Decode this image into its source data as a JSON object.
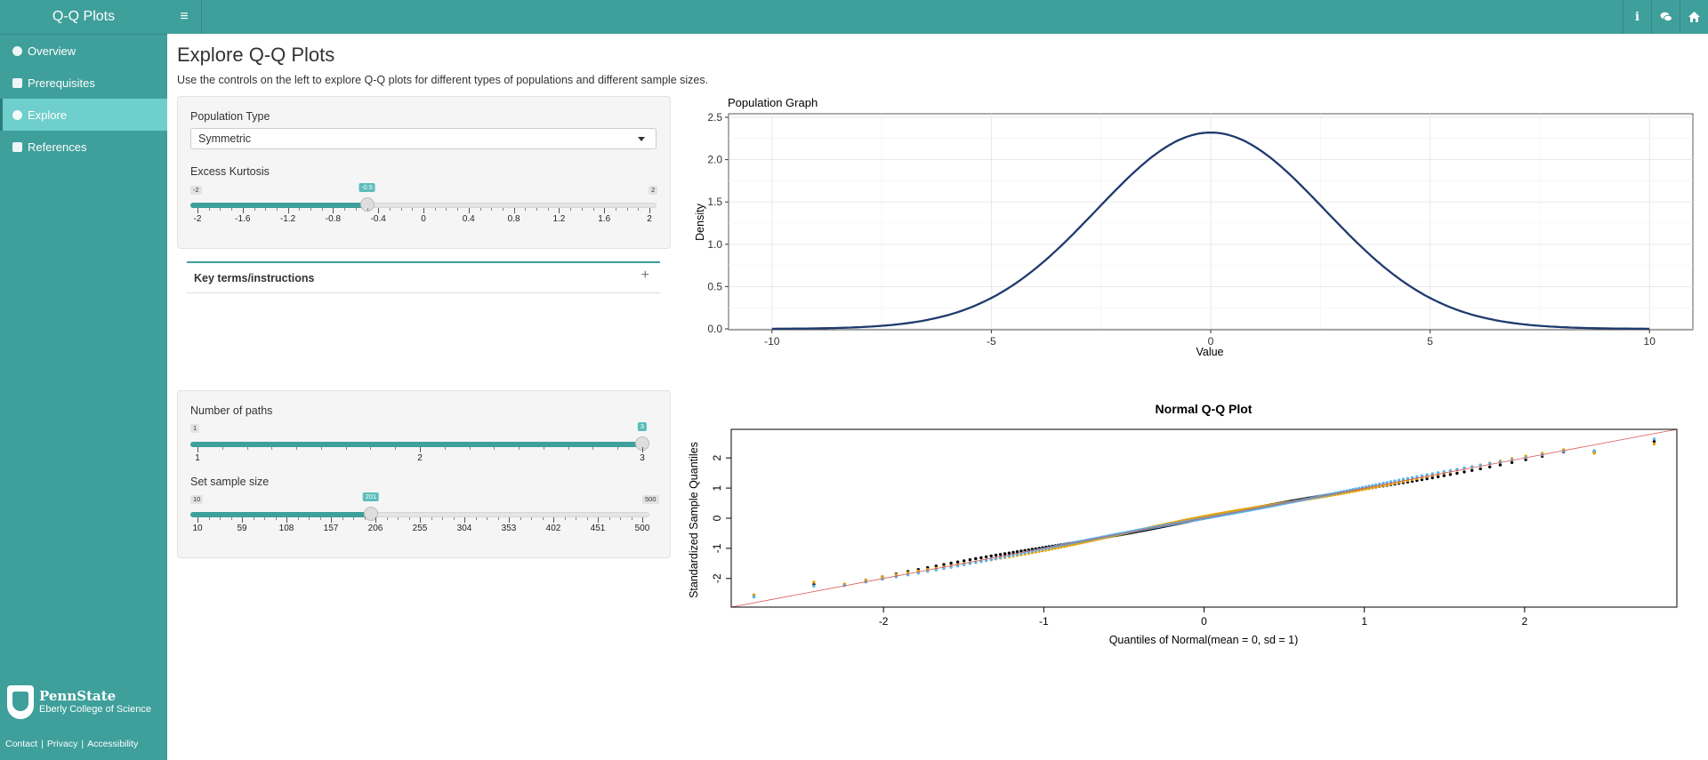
{
  "app": {
    "title": "Q-Q Plots"
  },
  "sidebar": {
    "items": [
      {
        "label": "Overview",
        "icon": "dashboard-icon"
      },
      {
        "label": "Prerequisites",
        "icon": "book-icon"
      },
      {
        "label": "Explore",
        "icon": "wpexplorer-icon",
        "active": true
      },
      {
        "label": "References",
        "icon": "leanpub-icon"
      }
    ]
  },
  "footer": {
    "org": "PennState",
    "college": "Eberly College of Science",
    "links": [
      "Contact",
      "Privacy",
      "Accessibility"
    ]
  },
  "topbar": {
    "menu_glyph": "≡",
    "icons": [
      "info-icon",
      "comments-icon",
      "home-icon"
    ]
  },
  "main": {
    "title": "Explore Q-Q Plots",
    "description": "Use the controls on the left to explore Q-Q plots for different types of populations and different sample sizes."
  },
  "controls": {
    "population_type": {
      "label": "Population Type",
      "value": "Symmetric"
    },
    "kurtosis": {
      "label": "Excess Kurtosis",
      "min": -2,
      "max": 2,
      "value": -0.5,
      "min_badge": "-2",
      "max_badge": "2",
      "value_badge": "-0.5",
      "ticks": [
        "-2",
        "-1.6",
        "-1.2",
        "-0.8",
        "-0.4",
        "0",
        "0.4",
        "0.8",
        "1.2",
        "1.6",
        "2"
      ]
    },
    "key_terms": {
      "label": "Key terms/instructions"
    },
    "paths": {
      "label": "Number of paths",
      "min": 1,
      "max": 3,
      "value": 3,
      "min_badge": "1",
      "value_badge": "3",
      "ticks": [
        "1",
        "2",
        "3"
      ]
    },
    "sample_size": {
      "label": "Set sample size",
      "min": 10,
      "max": 500,
      "value": 201,
      "min_badge": "10",
      "max_badge": "500",
      "value_badge": "201",
      "ticks": [
        "10",
        "59",
        "108",
        "157",
        "206",
        "255",
        "304",
        "353",
        "402",
        "451",
        "500"
      ]
    }
  },
  "chart_data": [
    {
      "type": "line",
      "title": "Population Graph",
      "xlabel": "Value",
      "ylabel": "Density",
      "xlim": [
        -10,
        10
      ],
      "ylim": [
        0,
        2.5
      ],
      "xticks": [
        "-10",
        "-5",
        "0",
        "5",
        "10"
      ],
      "yticks": [
        "0.0",
        "0.5",
        "1.0",
        "1.5",
        "2.0",
        "2.5"
      ],
      "curve": "bell-shaped, peak 2.32 at x = 0, near 0 at x = ±10",
      "peak": 2.32,
      "color": "#1f3a6e",
      "grid": true
    },
    {
      "type": "scatter",
      "title": "Normal Q-Q Plot",
      "xlabel": "Quantiles of Normal(mean = 0, sd = 1)",
      "ylabel": "Standardized Sample Quantiles",
      "xlim": [
        -2.95,
        2.95
      ],
      "ylim": [
        -2.95,
        2.95
      ],
      "xticks": [
        "-2",
        "-1",
        "0",
        "1",
        "2"
      ],
      "yticks": [
        "-2",
        "-1",
        "0",
        "1",
        "2"
      ],
      "n_points": 201,
      "reference_line": "y = x",
      "reference_color": "#d9534f",
      "series_colors": [
        "#000000",
        "#e69f00",
        "#56b4e9"
      ]
    }
  ]
}
